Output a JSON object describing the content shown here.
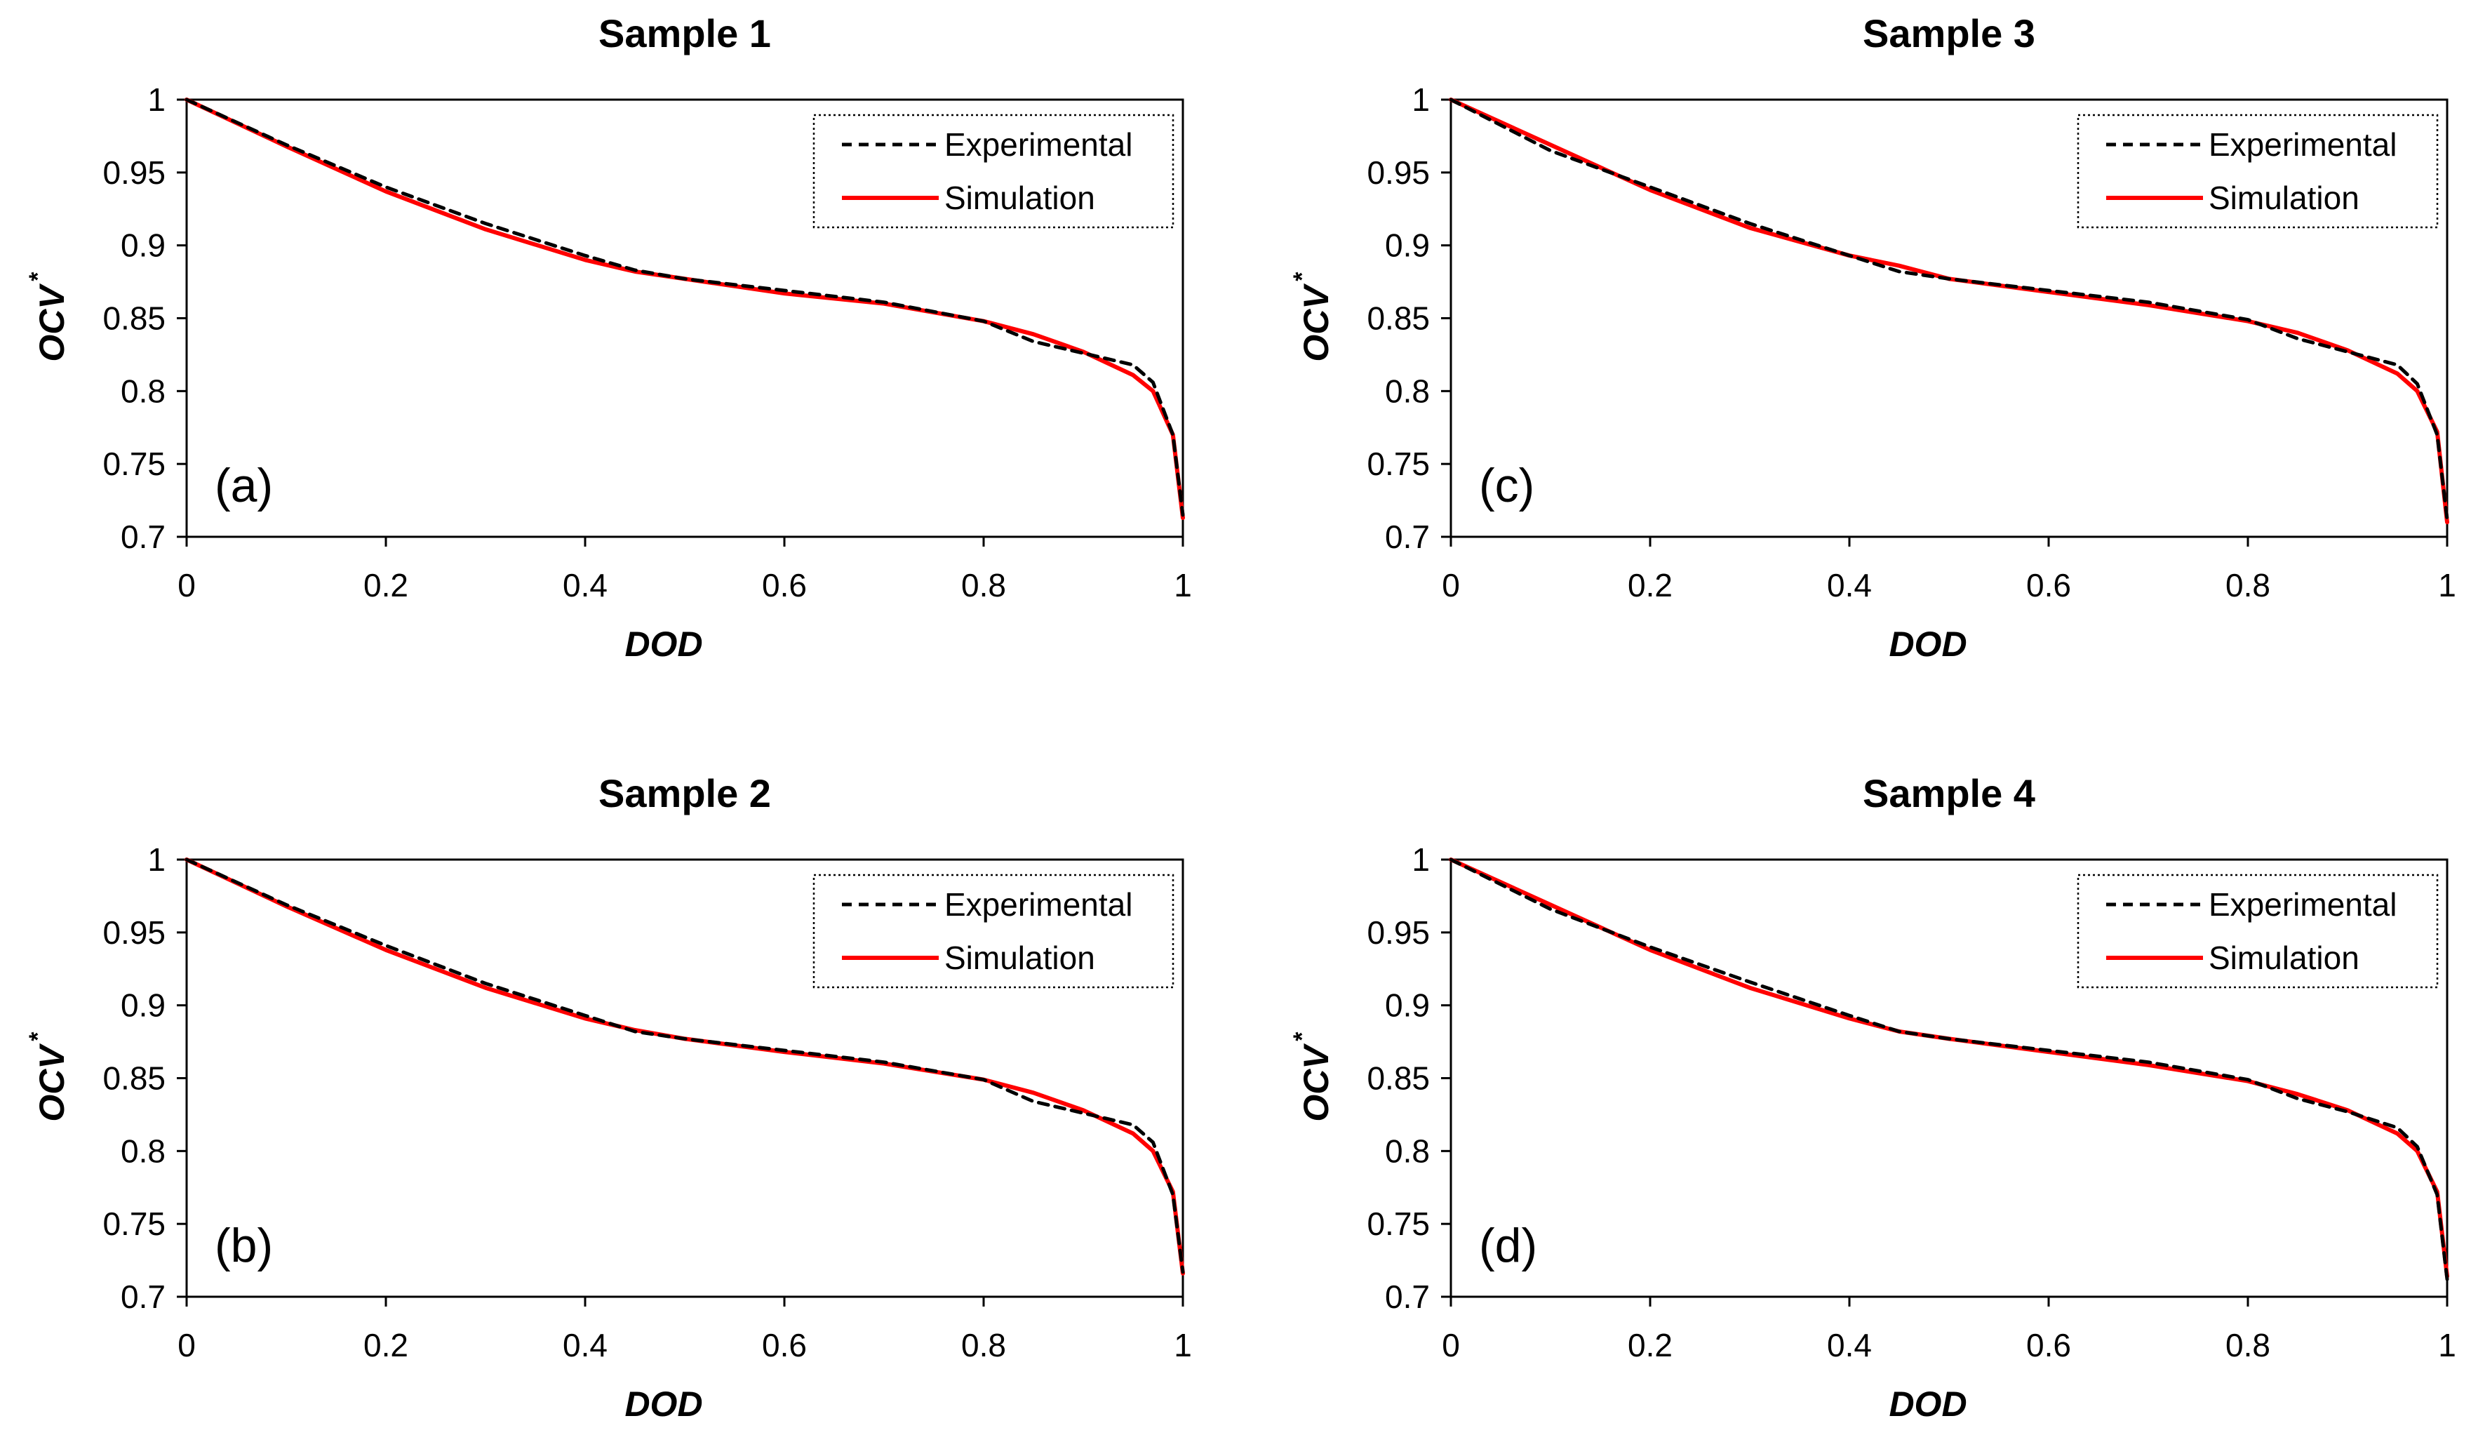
{
  "figure": {
    "layout": "2x2 grid of line charts",
    "colors": {
      "experimental": "#000000",
      "simulation": "#ff0000",
      "axis": "#000000"
    }
  },
  "chart_data": [
    {
      "id": "a",
      "type": "line",
      "title": "Sample 1",
      "panel_label": "(a)",
      "xlabel": "DOD",
      "ylabel": "OCV",
      "ylabel_sup": "*",
      "xlim": [
        0,
        1
      ],
      "ylim": [
        0.7,
        1
      ],
      "x_ticks": [
        "0",
        "0.2",
        "0.4",
        "0.6",
        "0.8",
        "1"
      ],
      "y_ticks": [
        "0.7",
        "0.75",
        "0.8",
        "0.85",
        "0.9",
        "0.95",
        "1"
      ],
      "legend_position": "top-right",
      "series": [
        {
          "name": "Experimental",
          "style": "dashed",
          "color": "#000000",
          "x": [
            0,
            0.1,
            0.2,
            0.3,
            0.4,
            0.45,
            0.5,
            0.6,
            0.7,
            0.8,
            0.85,
            0.9,
            0.95,
            0.97,
            0.99,
            1
          ],
          "y": [
            1.0,
            0.969,
            0.94,
            0.915,
            0.893,
            0.883,
            0.877,
            0.869,
            0.861,
            0.848,
            0.834,
            0.826,
            0.818,
            0.806,
            0.77,
            0.715
          ]
        },
        {
          "name": "Simulation",
          "style": "solid",
          "color": "#ff0000",
          "x": [
            0,
            0.1,
            0.2,
            0.3,
            0.4,
            0.45,
            0.5,
            0.6,
            0.7,
            0.8,
            0.85,
            0.9,
            0.95,
            0.97,
            0.99,
            1
          ],
          "y": [
            1.0,
            0.968,
            0.937,
            0.911,
            0.89,
            0.882,
            0.877,
            0.867,
            0.86,
            0.848,
            0.839,
            0.827,
            0.811,
            0.8,
            0.77,
            0.713
          ]
        }
      ]
    },
    {
      "id": "b",
      "type": "line",
      "title": "Sample 2",
      "panel_label": "(b)",
      "xlabel": "DOD",
      "ylabel": "OCV",
      "ylabel_sup": "*",
      "xlim": [
        0,
        1
      ],
      "ylim": [
        0.7,
        1
      ],
      "x_ticks": [
        "0",
        "0.2",
        "0.4",
        "0.6",
        "0.8",
        "1"
      ],
      "y_ticks": [
        "0.7",
        "0.75",
        "0.8",
        "0.85",
        "0.9",
        "0.95",
        "1"
      ],
      "legend_position": "top-right",
      "series": [
        {
          "name": "Experimental",
          "style": "dashed",
          "color": "#000000",
          "x": [
            0,
            0.1,
            0.2,
            0.3,
            0.4,
            0.45,
            0.5,
            0.6,
            0.7,
            0.8,
            0.85,
            0.9,
            0.95,
            0.97,
            0.99,
            1
          ],
          "y": [
            1.0,
            0.969,
            0.941,
            0.915,
            0.893,
            0.882,
            0.877,
            0.869,
            0.861,
            0.849,
            0.834,
            0.826,
            0.818,
            0.806,
            0.77,
            0.717
          ]
        },
        {
          "name": "Simulation",
          "style": "solid",
          "color": "#ff0000",
          "x": [
            0,
            0.1,
            0.2,
            0.3,
            0.4,
            0.45,
            0.5,
            0.6,
            0.7,
            0.8,
            0.85,
            0.9,
            0.95,
            0.97,
            0.99,
            1
          ],
          "y": [
            1.0,
            0.968,
            0.938,
            0.912,
            0.891,
            0.883,
            0.877,
            0.868,
            0.86,
            0.849,
            0.84,
            0.828,
            0.812,
            0.8,
            0.772,
            0.716
          ]
        }
      ]
    },
    {
      "id": "c",
      "type": "line",
      "title": "Sample 3",
      "panel_label": "(c)",
      "xlabel": "DOD",
      "ylabel": "OCV",
      "ylabel_sup": "*",
      "xlim": [
        0,
        1
      ],
      "ylim": [
        0.7,
        1
      ],
      "x_ticks": [
        "0",
        "0.2",
        "0.4",
        "0.6",
        "0.8",
        "1"
      ],
      "y_ticks": [
        "0.7",
        "0.75",
        "0.8",
        "0.85",
        "0.9",
        "0.95",
        "1"
      ],
      "legend_position": "top-right",
      "series": [
        {
          "name": "Experimental",
          "style": "dashed",
          "color": "#000000",
          "x": [
            0,
            0.1,
            0.2,
            0.3,
            0.4,
            0.45,
            0.5,
            0.6,
            0.7,
            0.8,
            0.85,
            0.9,
            0.95,
            0.97,
            0.99,
            1
          ],
          "y": [
            1.0,
            0.965,
            0.94,
            0.915,
            0.893,
            0.882,
            0.877,
            0.869,
            0.861,
            0.849,
            0.836,
            0.827,
            0.818,
            0.805,
            0.77,
            0.712
          ]
        },
        {
          "name": "Simulation",
          "style": "solid",
          "color": "#ff0000",
          "x": [
            0,
            0.1,
            0.2,
            0.3,
            0.4,
            0.45,
            0.5,
            0.6,
            0.7,
            0.8,
            0.85,
            0.9,
            0.95,
            0.97,
            0.99,
            1
          ],
          "y": [
            1.0,
            0.969,
            0.938,
            0.912,
            0.893,
            0.886,
            0.877,
            0.868,
            0.859,
            0.848,
            0.84,
            0.828,
            0.812,
            0.8,
            0.772,
            0.71
          ]
        }
      ]
    },
    {
      "id": "d",
      "type": "line",
      "title": "Sample 4",
      "panel_label": "(d)",
      "xlabel": "DOD",
      "ylabel": "OCV",
      "ylabel_sup": "*",
      "xlim": [
        0,
        1
      ],
      "ylim": [
        0.7,
        1
      ],
      "x_ticks": [
        "0",
        "0.2",
        "0.4",
        "0.6",
        "0.8",
        "1"
      ],
      "y_ticks": [
        "0.7",
        "0.75",
        "0.8",
        "0.85",
        "0.9",
        "0.95",
        "1"
      ],
      "legend_position": "top-right",
      "series": [
        {
          "name": "Experimental",
          "style": "dashed",
          "color": "#000000",
          "x": [
            0,
            0.1,
            0.2,
            0.3,
            0.4,
            0.45,
            0.5,
            0.6,
            0.7,
            0.8,
            0.85,
            0.9,
            0.95,
            0.97,
            0.99,
            1
          ],
          "y": [
            1.0,
            0.966,
            0.94,
            0.916,
            0.893,
            0.882,
            0.877,
            0.869,
            0.861,
            0.849,
            0.836,
            0.827,
            0.816,
            0.803,
            0.77,
            0.712
          ]
        },
        {
          "name": "Simulation",
          "style": "solid",
          "color": "#ff0000",
          "x": [
            0,
            0.1,
            0.2,
            0.3,
            0.4,
            0.45,
            0.5,
            0.6,
            0.7,
            0.8,
            0.85,
            0.9,
            0.95,
            0.97,
            0.99,
            1
          ],
          "y": [
            1.0,
            0.969,
            0.938,
            0.912,
            0.891,
            0.882,
            0.877,
            0.868,
            0.859,
            0.848,
            0.839,
            0.828,
            0.812,
            0.8,
            0.772,
            0.714
          ]
        }
      ]
    }
  ]
}
